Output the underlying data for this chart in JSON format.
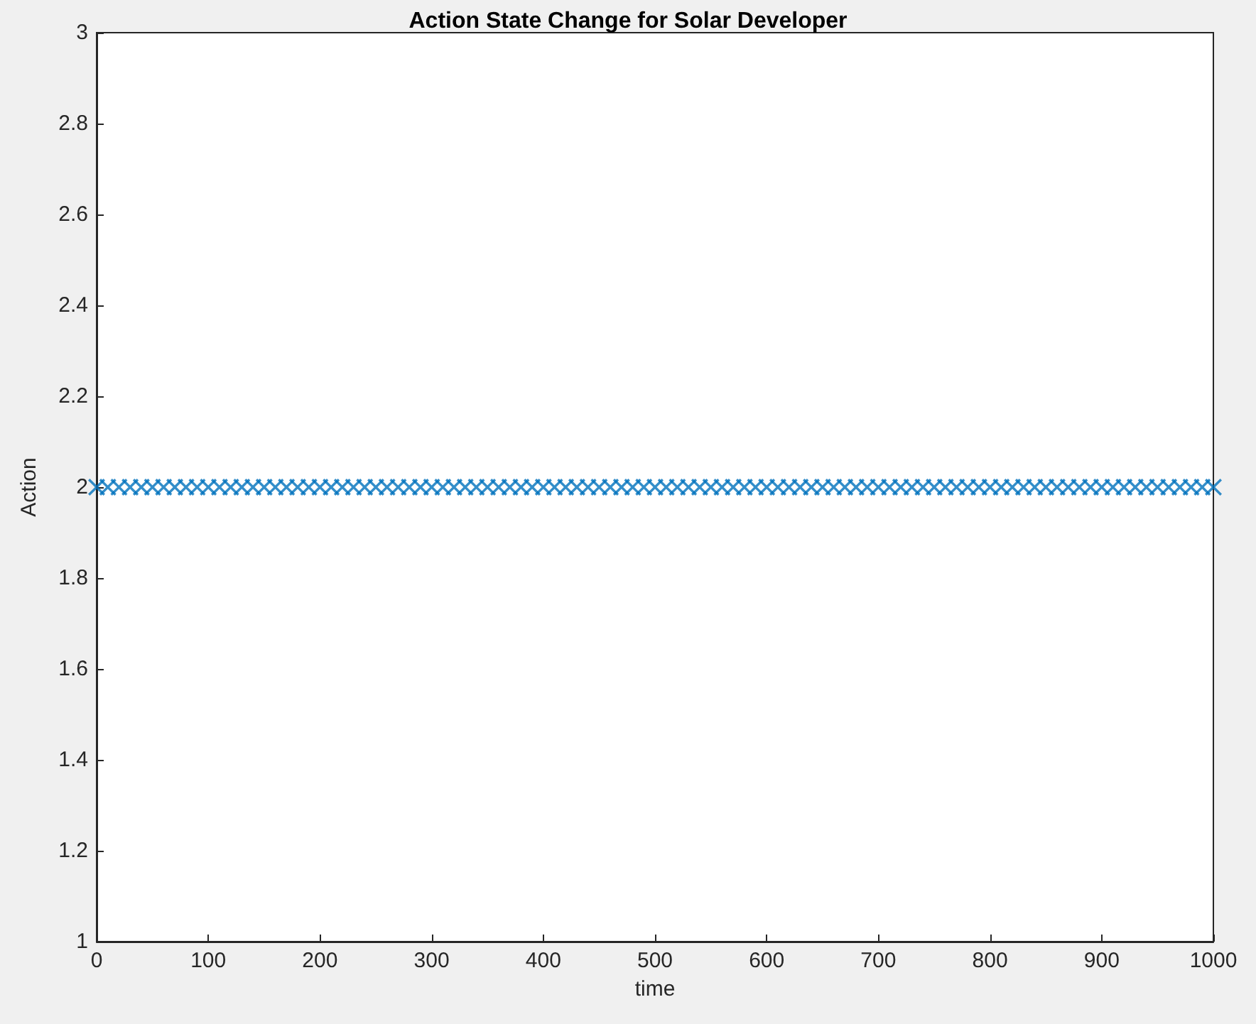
{
  "chart_data": {
    "type": "scatter",
    "title": "Action State Change for Solar Developer",
    "xlabel": "time",
    "ylabel": "Action",
    "x": [
      0,
      10,
      20,
      30,
      40,
      50,
      60,
      70,
      80,
      90,
      100,
      110,
      120,
      130,
      140,
      150,
      160,
      170,
      180,
      190,
      200,
      210,
      220,
      230,
      240,
      250,
      260,
      270,
      280,
      290,
      300,
      310,
      320,
      330,
      340,
      350,
      360,
      370,
      380,
      390,
      400,
      410,
      420,
      430,
      440,
      450,
      460,
      470,
      480,
      490,
      500,
      510,
      520,
      530,
      540,
      550,
      560,
      570,
      580,
      590,
      600,
      610,
      620,
      630,
      640,
      650,
      660,
      670,
      680,
      690,
      700,
      710,
      720,
      730,
      740,
      750,
      760,
      770,
      780,
      790,
      800,
      810,
      820,
      830,
      840,
      850,
      860,
      870,
      880,
      890,
      900,
      910,
      920,
      930,
      940,
      950,
      960,
      970,
      980,
      990,
      1000
    ],
    "values": [
      2,
      2,
      2,
      2,
      2,
      2,
      2,
      2,
      2,
      2,
      2,
      2,
      2,
      2,
      2,
      2,
      2,
      2,
      2,
      2,
      2,
      2,
      2,
      2,
      2,
      2,
      2,
      2,
      2,
      2,
      2,
      2,
      2,
      2,
      2,
      2,
      2,
      2,
      2,
      2,
      2,
      2,
      2,
      2,
      2,
      2,
      2,
      2,
      2,
      2,
      2,
      2,
      2,
      2,
      2,
      2,
      2,
      2,
      2,
      2,
      2,
      2,
      2,
      2,
      2,
      2,
      2,
      2,
      2,
      2,
      2,
      2,
      2,
      2,
      2,
      2,
      2,
      2,
      2,
      2,
      2,
      2,
      2,
      2,
      2,
      2,
      2,
      2,
      2,
      2,
      2,
      2,
      2,
      2,
      2,
      2,
      2,
      2,
      2,
      2,
      2
    ],
    "color": "#0072bd",
    "marker": "cross",
    "xlim": [
      0,
      1000
    ],
    "xticks": [
      0,
      100,
      200,
      300,
      400,
      500,
      600,
      700,
      800,
      900,
      1000
    ],
    "ylim": [
      1,
      3
    ],
    "yticks": [
      1,
      1.2,
      1.4,
      1.6,
      1.8,
      2,
      2.2,
      2.4,
      2.6,
      2.8,
      3
    ],
    "grid": false
  }
}
